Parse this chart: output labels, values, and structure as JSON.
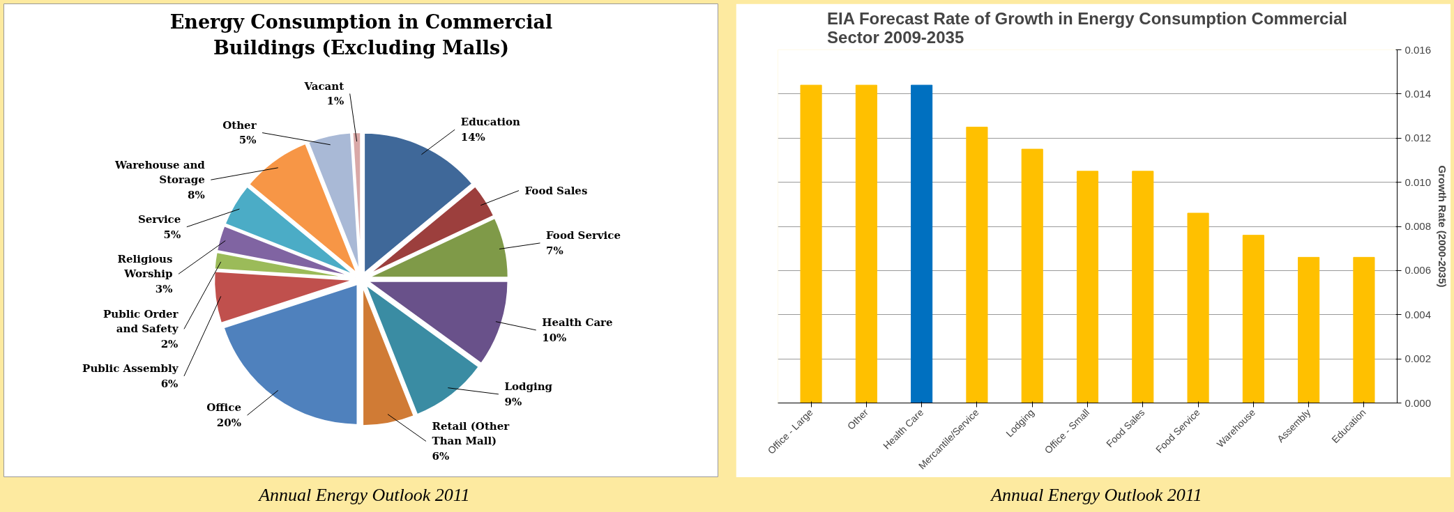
{
  "chart_data": [
    {
      "type": "pie",
      "title": "Energy Consumption in Commercial\nBuildings (Excluding Malls)",
      "categories": [
        "Education",
        "Food Sales",
        "Food Service",
        "Health Care",
        "Lodging",
        "Retail (Other\nThan Mall)",
        "Office",
        "Public Assembly",
        "Public Order\nand Safety",
        "Religious\nWorship",
        "Service",
        "Warehouse and\nStorage",
        "Other",
        "Vacant"
      ],
      "values": [
        14,
        4,
        7,
        10,
        9,
        6,
        20,
        6,
        2,
        3,
        5,
        8,
        5,
        1
      ],
      "value_labels": [
        "14%",
        null,
        "7%",
        "10%",
        "9%",
        "6%",
        "20%",
        "6%",
        "2%",
        "3%",
        "5%",
        "8%",
        "5%",
        "1%"
      ],
      "colors": [
        "#3f6899",
        "#9c3f3d",
        "#7f9a48",
        "#69518a",
        "#3a8ca3",
        "#d07b35",
        "#4f81bd",
        "#c0504d",
        "#9bbb59",
        "#8064a2",
        "#4bacc6",
        "#f79646",
        "#a9b9d6",
        "#d9a8a7"
      ],
      "annotations": [
        "Annual Energy Outlook 2011"
      ]
    },
    {
      "type": "bar",
      "title": "EIA Forecast Rate of Growth in Energy Consumption Commercial\nSector 2009-2035",
      "categories": [
        "Office - Large",
        "Other",
        "Health Care",
        "Mercantile/Service",
        "Lodging",
        "Office - Small",
        "Food Sales",
        "Food Service",
        "Warehouse",
        "Assembly",
        "Education"
      ],
      "values": [
        0.0144,
        0.0144,
        0.0144,
        0.0125,
        0.0115,
        0.0105,
        0.0105,
        0.0086,
        0.0076,
        0.0066,
        0.0066
      ],
      "colors": [
        "#ffc000",
        "#ffc000",
        "#0070c0",
        "#ffc000",
        "#ffc000",
        "#ffc000",
        "#ffc000",
        "#ffc000",
        "#ffc000",
        "#ffc000",
        "#ffc000"
      ],
      "ylabel": "Growth Rate (2000-2035)",
      "ylim": [
        0,
        0.016
      ],
      "yticks": [
        {
          "value": 0,
          "label": "0.000"
        },
        {
          "value": 0.002,
          "label": "0.002"
        },
        {
          "value": 0.004,
          "label": "0.004"
        },
        {
          "value": 0.006,
          "label": "0.006"
        },
        {
          "value": 0.008,
          "label": "0.008"
        },
        {
          "value": 0.01,
          "label": "0.010"
        },
        {
          "value": 0.012,
          "label": "0.012"
        },
        {
          "value": 0.014,
          "label": "0.014"
        },
        {
          "value": 0.016,
          "label": "0.016"
        }
      ],
      "grid": "y",
      "annotations": [
        "Annual Energy Outlook 2011"
      ]
    }
  ]
}
